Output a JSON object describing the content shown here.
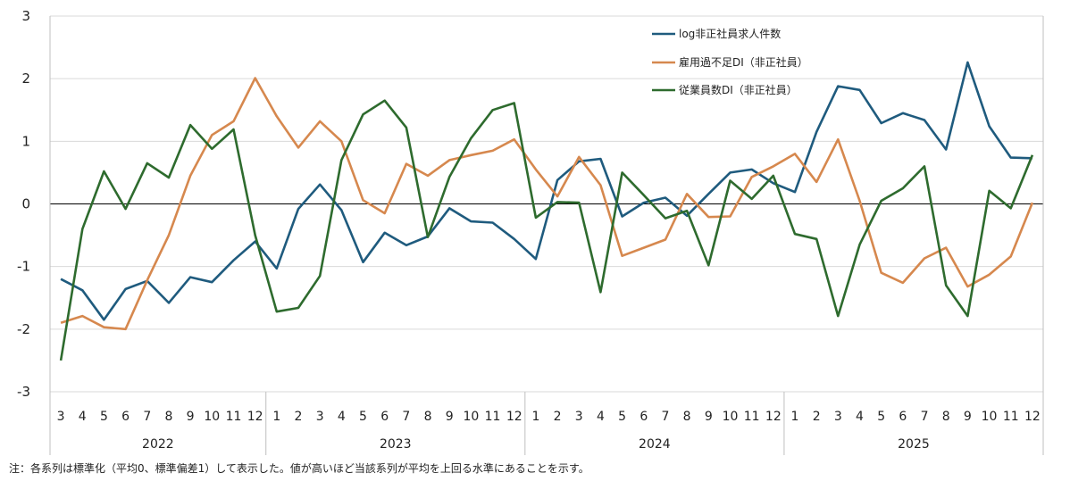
{
  "chart_data": {
    "type": "line",
    "title": "",
    "ylim": [
      -3,
      3
    ],
    "yticks": [
      3,
      2,
      1,
      0,
      -1,
      -2,
      -3
    ],
    "grid": true,
    "legend_position": "top-right",
    "months": [
      3,
      4,
      5,
      6,
      7,
      8,
      9,
      10,
      11,
      12,
      1,
      2,
      3,
      4,
      5,
      6,
      7,
      8,
      9,
      10,
      11,
      12,
      1,
      2,
      3,
      4,
      5,
      6,
      7,
      8,
      9,
      10,
      11,
      12,
      1,
      2,
      3,
      4,
      5,
      6,
      7,
      8,
      9,
      10,
      11,
      12
    ],
    "years": [
      {
        "label": "2022",
        "count": 10
      },
      {
        "label": "2023",
        "count": 12
      },
      {
        "label": "2024",
        "count": 12
      },
      {
        "label": "2025",
        "count": 12
      }
    ],
    "series": [
      {
        "name": "log非正社員求人件数",
        "color": "#1f5b7e",
        "values": [
          -1.2,
          -1.38,
          -1.85,
          -1.36,
          -1.23,
          -1.58,
          -1.17,
          -1.25,
          -0.9,
          -0.6,
          -1.03,
          -0.08,
          0.31,
          -0.1,
          -0.93,
          -0.46,
          -0.66,
          -0.52,
          -0.07,
          -0.28,
          -0.3,
          -0.56,
          -0.88,
          0.38,
          0.68,
          0.72,
          -0.2,
          0.02,
          0.1,
          -0.19,
          0.16,
          0.5,
          0.55,
          0.33,
          0.19,
          1.15,
          1.88,
          1.82,
          1.29,
          1.45,
          1.34,
          0.87,
          2.26,
          1.24,
          0.74,
          0.73
        ]
      },
      {
        "name": "雇用過不足DI（非正社員）",
        "color": "#d6884e",
        "values": [
          -1.9,
          -1.79,
          -1.97,
          -2.0,
          -1.22,
          -0.5,
          0.45,
          1.1,
          1.32,
          2.01,
          1.4,
          0.9,
          1.32,
          1.0,
          0.06,
          -0.15,
          0.64,
          0.45,
          0.7,
          0.78,
          0.85,
          1.03,
          0.55,
          0.12,
          0.75,
          0.3,
          -0.83,
          -0.7,
          -0.57,
          0.16,
          -0.21,
          -0.2,
          0.43,
          0.6,
          0.8,
          0.35,
          1.03,
          0.05,
          -1.1,
          -1.26,
          -0.87,
          -0.7,
          -1.32,
          -1.13,
          -0.84,
          0.02
        ]
      },
      {
        "name": "従業員数DI（非正社員）",
        "color": "#2e6b2e",
        "values": [
          -2.5,
          -0.4,
          0.52,
          -0.08,
          0.65,
          0.42,
          1.26,
          0.88,
          1.19,
          -0.5,
          -1.72,
          -1.66,
          -1.15,
          0.7,
          1.43,
          1.65,
          1.22,
          -0.53,
          0.43,
          1.05,
          1.5,
          1.61,
          -0.22,
          0.03,
          0.02,
          -1.41,
          0.5,
          0.14,
          -0.23,
          -0.11,
          -0.98,
          0.37,
          0.08,
          0.45,
          -0.48,
          -0.56,
          -1.79,
          -0.65,
          0.05,
          0.25,
          0.6,
          -1.3,
          -1.79,
          0.21,
          -0.07,
          0.78
        ]
      }
    ]
  },
  "note": "注：各系列は標準化（平均0、標準偏差1）して表示した。値が高いほど当該系列が平均を上回る水準にあることを示す。"
}
